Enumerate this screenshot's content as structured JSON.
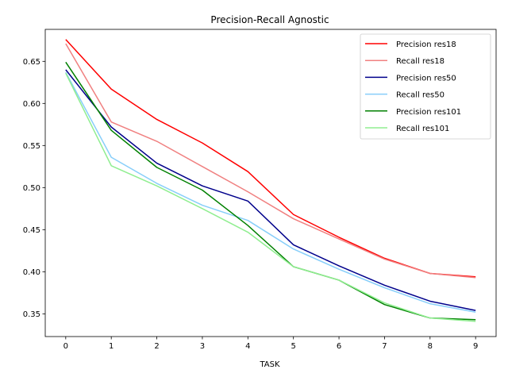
{
  "chart_data": {
    "type": "line",
    "title": "Precision-Recall Agnostic",
    "xlabel": "TASK",
    "ylabel": "",
    "x": [
      0,
      1,
      2,
      3,
      4,
      5,
      6,
      7,
      8,
      9
    ],
    "xticks": [
      "0",
      "1",
      "2",
      "3",
      "4",
      "5",
      "6",
      "7",
      "8",
      "9"
    ],
    "yticks": [
      "0.35",
      "0.40",
      "0.45",
      "0.50",
      "0.55",
      "0.60",
      "0.65"
    ],
    "ylim": [
      0.323,
      0.688
    ],
    "xlim": [
      -0.45,
      9.45
    ],
    "grid": false,
    "legend_position": "upper right",
    "series": [
      {
        "name": "Precision res18",
        "color": "#ff0000",
        "values": [
          0.676,
          0.617,
          0.581,
          0.553,
          0.519,
          0.468,
          0.441,
          0.416,
          0.398,
          0.394
        ]
      },
      {
        "name": "Recall res18",
        "color": "#f08080",
        "values": [
          0.671,
          0.578,
          0.555,
          0.525,
          0.495,
          0.463,
          0.439,
          0.415,
          0.398,
          0.393
        ]
      },
      {
        "name": "Precision res50",
        "color": "#00008b",
        "values": [
          0.64,
          0.572,
          0.529,
          0.502,
          0.484,
          0.432,
          0.407,
          0.384,
          0.365,
          0.354
        ]
      },
      {
        "name": "Recall res50",
        "color": "#87cefa",
        "values": [
          0.637,
          0.536,
          0.505,
          0.479,
          0.461,
          0.427,
          0.403,
          0.381,
          0.362,
          0.352
        ]
      },
      {
        "name": "Precision res101",
        "color": "#008000",
        "values": [
          0.649,
          0.568,
          0.524,
          0.497,
          0.455,
          0.406,
          0.39,
          0.361,
          0.345,
          0.343
        ]
      },
      {
        "name": "Recall res101",
        "color": "#90ee90",
        "values": [
          0.636,
          0.526,
          0.502,
          0.475,
          0.447,
          0.406,
          0.39,
          0.363,
          0.345,
          0.341
        ]
      }
    ]
  }
}
